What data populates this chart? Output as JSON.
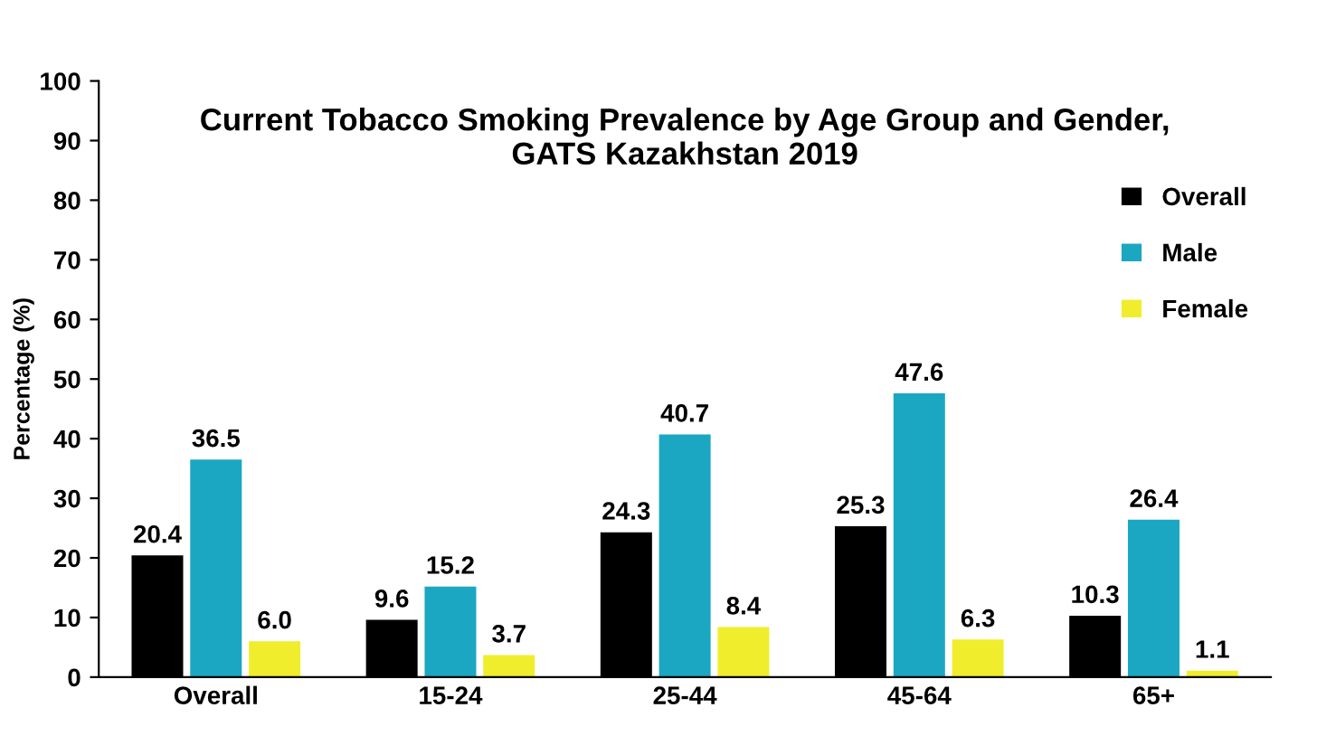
{
  "chart_data": {
    "type": "bar",
    "title": "Current Tobacco Smoking Prevalence by Age Group and Gender,\nGATS Kazakhstan 2019",
    "ylabel": "Percentage (%)",
    "categories": [
      "Overall",
      "15-24",
      "25-44",
      "45-64",
      "65+"
    ],
    "series": [
      {
        "name": "Overall",
        "color": "#000000",
        "values": [
          20.4,
          9.6,
          24.3,
          25.3,
          10.3
        ]
      },
      {
        "name": "Male",
        "color": "#1ba7c1",
        "values": [
          36.5,
          15.2,
          40.7,
          47.6,
          26.4
        ]
      },
      {
        "name": "Female",
        "color": "#f0ee2c",
        "values": [
          6.0,
          3.7,
          8.4,
          6.3,
          1.1
        ]
      }
    ],
    "value_labels": [
      [
        "20.4",
        "9.6",
        "24.3",
        "25.3",
        "10.3"
      ],
      [
        "36.5",
        "15.2",
        "40.7",
        "47.6",
        "26.4"
      ],
      [
        "6.0",
        "3.7",
        "8.4",
        "6.3",
        "1.1"
      ]
    ],
    "ylim": [
      0,
      100
    ],
    "yticks": [
      0,
      10,
      20,
      30,
      40,
      50,
      60,
      70,
      80,
      90,
      100
    ],
    "grid": false,
    "legend": "top right"
  }
}
